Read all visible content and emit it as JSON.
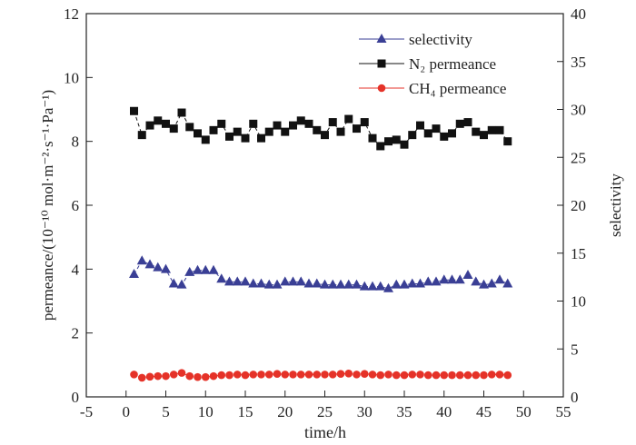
{
  "chart_data": {
    "type": "line",
    "xlabel": "time/h",
    "ylabel": "permeance/(10⁻¹⁰ mol·m⁻²·s⁻¹·Pa⁻¹)",
    "y2label": "selectivity",
    "xlim": [
      -5,
      55
    ],
    "ylim": [
      0,
      12
    ],
    "y2lim": [
      0,
      40
    ],
    "xticks": [
      "-5",
      "0",
      "5",
      "10",
      "15",
      "20",
      "25",
      "30",
      "35",
      "40",
      "45",
      "50",
      "55"
    ],
    "yticks": [
      "0",
      "2",
      "4",
      "6",
      "8",
      "10",
      "12"
    ],
    "y2ticks": [
      "0",
      "5",
      "10",
      "15",
      "20",
      "25",
      "30",
      "35",
      "40"
    ],
    "legend_position": "top-right",
    "x": [
      1,
      2,
      3,
      4,
      5,
      6,
      7,
      8,
      9,
      10,
      11,
      12,
      13,
      14,
      15,
      16,
      17,
      18,
      19,
      20,
      21,
      22,
      23,
      24,
      25,
      26,
      27,
      28,
      29,
      30,
      31,
      32,
      33,
      34,
      35,
      36,
      37,
      38,
      39,
      40,
      41,
      42,
      43,
      44,
      45,
      46,
      47,
      48
    ],
    "series": [
      {
        "name": "selectivity",
        "axis": "right",
        "marker": "triangle",
        "color": "#3a3f95",
        "values": [
          12.8,
          14.2,
          13.8,
          13.5,
          13.3,
          11.8,
          11.7,
          13.0,
          13.2,
          13.2,
          13.2,
          12.3,
          12.0,
          12.0,
          12.0,
          11.8,
          11.8,
          11.7,
          11.7,
          12.0,
          12.0,
          12.0,
          11.8,
          11.8,
          11.7,
          11.7,
          11.7,
          11.7,
          11.7,
          11.5,
          11.5,
          11.5,
          11.3,
          11.7,
          11.7,
          11.8,
          11.8,
          12.0,
          12.0,
          12.2,
          12.2,
          12.2,
          12.7,
          12.0,
          11.7,
          11.8,
          12.2,
          11.8
        ]
      },
      {
        "name": "N₂ permeance",
        "axis": "left",
        "marker": "square",
        "color": "#111111",
        "values": [
          8.95,
          8.2,
          8.5,
          8.65,
          8.55,
          8.4,
          8.9,
          8.45,
          8.25,
          8.05,
          8.35,
          8.55,
          8.15,
          8.3,
          8.1,
          8.55,
          8.1,
          8.3,
          8.5,
          8.3,
          8.5,
          8.65,
          8.55,
          8.35,
          8.2,
          8.6,
          8.3,
          8.7,
          8.4,
          8.6,
          8.1,
          7.85,
          8.0,
          8.05,
          7.9,
          8.2,
          8.5,
          8.25,
          8.4,
          8.15,
          8.25,
          8.55,
          8.6,
          8.3,
          8.2,
          8.35,
          8.35,
          8.0
        ]
      },
      {
        "name": "CH₄ permeance",
        "axis": "left",
        "marker": "circle",
        "color": "#e53228",
        "values": [
          0.7,
          0.6,
          0.63,
          0.65,
          0.65,
          0.7,
          0.75,
          0.65,
          0.62,
          0.62,
          0.65,
          0.68,
          0.68,
          0.7,
          0.68,
          0.7,
          0.7,
          0.7,
          0.72,
          0.7,
          0.7,
          0.7,
          0.7,
          0.7,
          0.7,
          0.7,
          0.72,
          0.73,
          0.7,
          0.72,
          0.7,
          0.68,
          0.7,
          0.68,
          0.68,
          0.7,
          0.7,
          0.68,
          0.68,
          0.68,
          0.68,
          0.68,
          0.68,
          0.68,
          0.68,
          0.7,
          0.7,
          0.68
        ]
      }
    ]
  }
}
